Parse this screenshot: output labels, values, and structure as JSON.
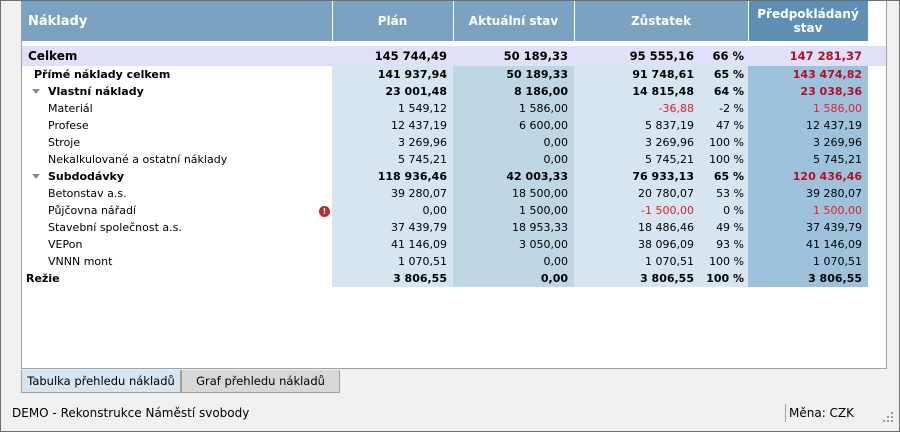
{
  "table": {
    "headers": {
      "name": "Náklady",
      "plan": "Plán",
      "actual": "Aktuální stav",
      "remaining": "Zůstatek",
      "projected": "Předpokládaný stav"
    },
    "total": {
      "name": "Celkem",
      "plan": "145 744,49",
      "actual": "50 189,33",
      "remaining": "95 555,16",
      "pct": "66 %",
      "projected": "147 281,37"
    },
    "rows": [
      {
        "name": "Přímé náklady celkem",
        "plan": "141 937,94",
        "actual": "50 189,33",
        "remaining": "91 748,61",
        "pct": "65 %",
        "projected": "143 474,82"
      },
      {
        "name": "Vlastní náklady",
        "plan": "23 001,48",
        "actual": "8 186,00",
        "remaining": "14 815,48",
        "pct": "64 %",
        "projected": "23 038,36"
      },
      {
        "name": "Materiál",
        "plan": "1 549,12",
        "actual": "1 586,00",
        "remaining": "-36,88",
        "pct": "-2 %",
        "projected": "1 586,00"
      },
      {
        "name": "Profese",
        "plan": "12 437,19",
        "actual": "6 600,00",
        "remaining": "5 837,19",
        "pct": "47 %",
        "projected": "12 437,19"
      },
      {
        "name": "Stroje",
        "plan": "3 269,96",
        "actual": "0,00",
        "remaining": "3 269,96",
        "pct": "100 %",
        "projected": "3 269,96"
      },
      {
        "name": "Nekalkulované a ostatní náklady",
        "plan": "5 745,21",
        "actual": "0,00",
        "remaining": "5 745,21",
        "pct": "100 %",
        "projected": "5 745,21"
      },
      {
        "name": "Subdodávky",
        "plan": "118 936,46",
        "actual": "42 003,33",
        "remaining": "76 933,13",
        "pct": "65 %",
        "projected": "120 436,46"
      },
      {
        "name": "Betonstav a.s.",
        "plan": "39 280,07",
        "actual": "18 500,00",
        "remaining": "20 780,07",
        "pct": "53 %",
        "projected": "39 280,07"
      },
      {
        "name": "Půjčovna nářadí",
        "plan": "0,00",
        "actual": "1 500,00",
        "remaining": "-1 500,00",
        "pct": "0 %",
        "projected": "1 500,00",
        "warning": "!"
      },
      {
        "name": "Stavební společnost a.s.",
        "plan": "37 439,79",
        "actual": "18 953,33",
        "remaining": "18 486,46",
        "pct": "49 %",
        "projected": "37 439,79"
      },
      {
        "name": "VEPon",
        "plan": "41 146,09",
        "actual": "3 050,00",
        "remaining": "38 096,09",
        "pct": "93 %",
        "projected": "41 146,09"
      },
      {
        "name": "VNNN mont",
        "plan": "1 070,51",
        "actual": "0,00",
        "remaining": "1 070,51",
        "pct": "100 %",
        "projected": "1 070,51"
      },
      {
        "name": "Režie",
        "plan": "3 806,55",
        "actual": "0,00",
        "remaining": "3 806,55",
        "pct": "100 %",
        "projected": "3 806,55"
      }
    ]
  },
  "tabs": [
    "Tabulka přehledu nákladů",
    "Graf přehledu nákladů"
  ],
  "status": {
    "project": "DEMO - Rekonstrukce Náměstí svobody",
    "currency": "Měna: CZK"
  },
  "colors": {
    "header": "#7ba3c1",
    "projected_header": "#5f8fb4",
    "negative": "#e0202a",
    "projected_over": "#b0102a",
    "total_row": "#e0e0f8"
  },
  "icons": {
    "collapse": "triangle-down-icon",
    "warning": "warning-icon",
    "resize": "resize-grip-icon"
  }
}
